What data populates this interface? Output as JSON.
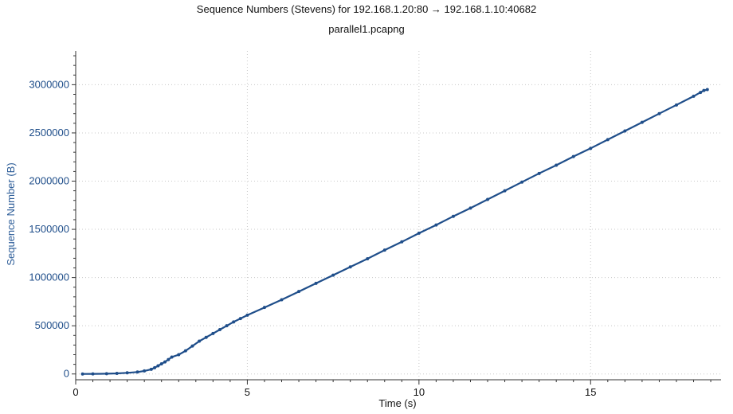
{
  "chart_data": {
    "type": "scatter",
    "title": "Sequence Numbers (Stevens) for 192.168.1.20:80 → 192.168.1.10:40682",
    "subtitle": "parallel1.pcapng",
    "xlabel": "Time (s)",
    "ylabel": "Sequence Number (B)",
    "xlim": [
      0,
      18.8
    ],
    "ylim": [
      -60000,
      3350000
    ],
    "x_ticks": [
      0,
      5,
      10,
      15
    ],
    "x_tick_labels": [
      "0",
      "5",
      "10",
      "15"
    ],
    "y_ticks": [
      0,
      500000,
      1000000,
      1500000,
      2000000,
      2500000,
      3000000
    ],
    "y_tick_labels": [
      "0",
      "500000",
      "1000000",
      "1500000",
      "2000000",
      "2500000",
      "3000000"
    ],
    "grid": true,
    "grid_style": "dotted",
    "series": [
      {
        "color": "#1f4e8a",
        "marker": "dot",
        "x": [
          0.2,
          0.5,
          0.9,
          1.2,
          1.5,
          1.8,
          2.0,
          2.2,
          2.3,
          2.4,
          2.5,
          2.6,
          2.7,
          2.8,
          3.0,
          3.2,
          3.4,
          3.6,
          3.8,
          4.0,
          4.2,
          4.4,
          4.6,
          4.8,
          5.0,
          5.5,
          6.0,
          6.5,
          7.0,
          7.5,
          8.0,
          8.5,
          9.0,
          9.5,
          10.0,
          10.5,
          11.0,
          11.5,
          12.0,
          12.5,
          13.0,
          13.5,
          14.0,
          14.5,
          15.0,
          15.5,
          16.0,
          16.5,
          17.0,
          17.5,
          18.0,
          18.2,
          18.3,
          18.4
        ],
        "y": [
          0,
          1000,
          3000,
          6000,
          12000,
          20000,
          32000,
          48000,
          65000,
          85000,
          105000,
          125000,
          150000,
          175000,
          200000,
          240000,
          290000,
          340000,
          380000,
          420000,
          460000,
          500000,
          540000,
          575000,
          610000,
          690000,
          770000,
          855000,
          940000,
          1025000,
          1110000,
          1195000,
          1285000,
          1370000,
          1460000,
          1545000,
          1635000,
          1720000,
          1810000,
          1900000,
          1990000,
          2080000,
          2165000,
          2255000,
          2340000,
          2430000,
          2520000,
          2610000,
          2700000,
          2790000,
          2880000,
          2920000,
          2940000,
          2950000
        ]
      }
    ]
  }
}
